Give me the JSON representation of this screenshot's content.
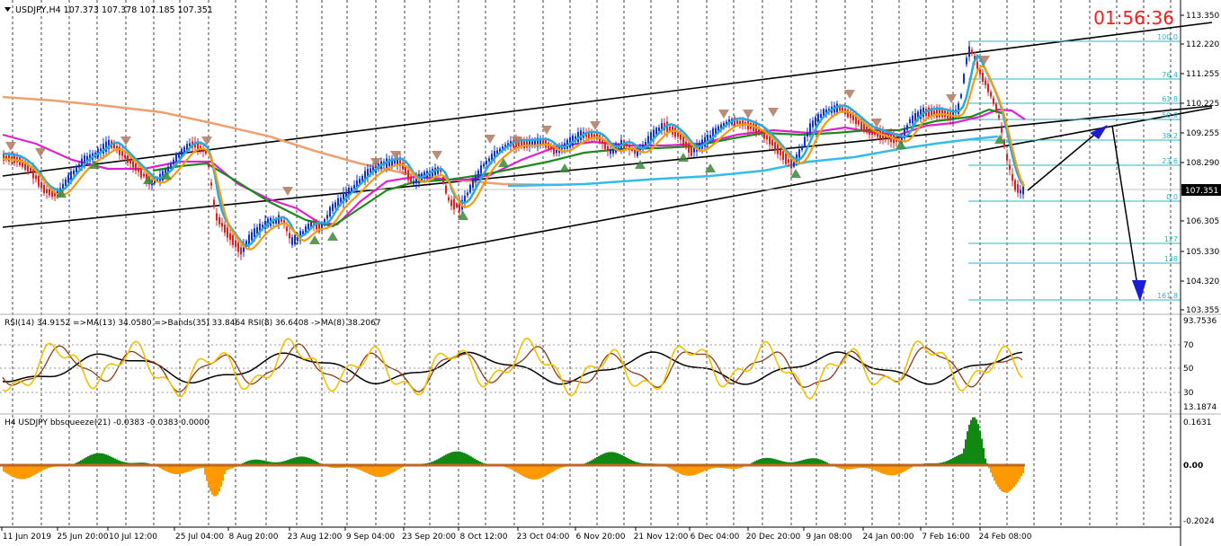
{
  "symbol_header": "USDJPY,H4  107.373 107.378 107.185 107.351",
  "timer": "01:56:36",
  "current_price": "107.351",
  "colors": {
    "bull": "#1030d0",
    "bear": "#e02020",
    "ema_orange": "#f39c12",
    "ema_cyan": "#29a8e0",
    "ma_green": "#1d8a1d",
    "ma_magenta": "#e020d0",
    "ma_salmon": "#f0a070",
    "ma_sky": "#33bbee",
    "fib": "#2ab7c9",
    "rsi_yellow": "#f2c200",
    "rsi_brown": "#8b3a1a",
    "rsi_black": "#000000",
    "hist_green": "#22bb22",
    "hist_orange": "#ff9900",
    "hist_red": "#ee1111"
  },
  "price_axis": {
    "labels": [
      "113.350",
      "112.220",
      "111.255",
      "110.225",
      "109.255",
      "108.290",
      "106.305",
      "105.330",
      "104.320",
      "103.355"
    ]
  },
  "fib_levels": [
    "100.0",
    "76.4",
    "61.8",
    "50.0",
    "38.2",
    "23.6",
    "0.0",
    "127",
    "138",
    "161.8"
  ],
  "rsi_panel": {
    "header": "RSI(14) 34.9152  =>MA(13) 34.0580  =>Bands(35) 33.8464  RSI(8) 36.6408  ->MA(8) 38.2067",
    "axis": [
      "93.7536",
      "70",
      "50",
      "30",
      "13.1874"
    ]
  },
  "bb_panel": {
    "header": "H4 USDJPY bbsqueeze(21) -0.0383 -0.0383 0.0000",
    "axis": [
      "0.1631",
      "0.00",
      "-0.2024"
    ]
  },
  "time_axis": [
    "11 Jun 2019",
    "25 Jun 20:00",
    "10 Jul 12:00",
    "25 Jul 04:00",
    "8 Aug 20:00",
    "23 Aug 12:00",
    "9 Sep 04:00",
    "23 Sep 20:00",
    "8 Oct 12:00",
    "23 Oct 04:00",
    "6 Nov 20:00",
    "21 Nov 12:00",
    "6 Dec 04:00",
    "20 Dec 20:00",
    "9 Jan 08:00",
    "24 Jan 00:00",
    "7 Feb 16:00",
    "24 Feb 08:00"
  ]
}
